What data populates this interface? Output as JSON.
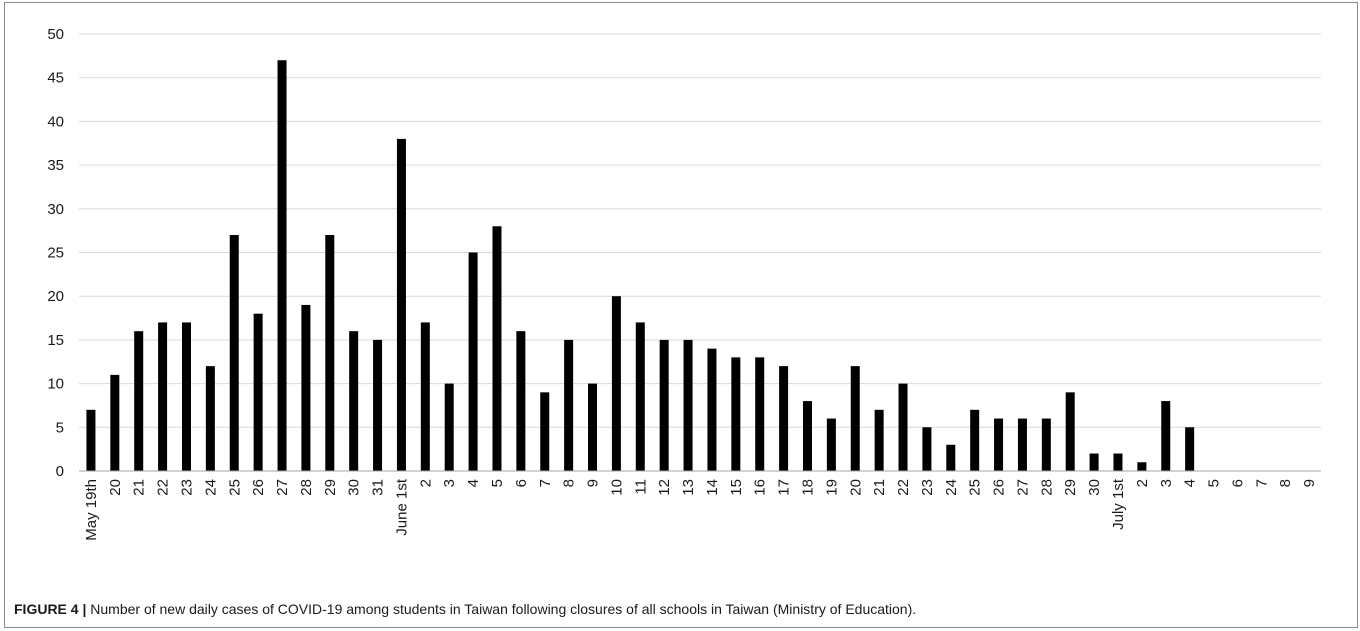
{
  "caption": {
    "label": "FIGURE 4 |",
    "text": "Number of new daily cases of COVID-19 among students in Taiwan following closures of all schools in Taiwan (Ministry of Education)."
  },
  "colors": {
    "bar": "#000000",
    "grid": "#d9d9d9",
    "axis": "#a6a6a6",
    "frame": "#8c8c8c"
  },
  "chart_data": {
    "type": "bar",
    "title": "",
    "xlabel": "",
    "ylabel": "",
    "ylim": [
      0,
      50
    ],
    "yticks": [
      0,
      5,
      10,
      15,
      20,
      25,
      30,
      35,
      40,
      45,
      50
    ],
    "grid": true,
    "legend": "none",
    "categories": [
      "May 19th",
      "20",
      "21",
      "22",
      "23",
      "24",
      "25",
      "26",
      "27",
      "28",
      "29",
      "30",
      "31",
      "June 1st",
      "2",
      "3",
      "4",
      "5",
      "6",
      "7",
      "8",
      "9",
      "10",
      "11",
      "12",
      "13",
      "14",
      "15",
      "16",
      "17",
      "18",
      "19",
      "20",
      "21",
      "22",
      "23",
      "24",
      "25",
      "26",
      "27",
      "28",
      "29",
      "30",
      "July 1st",
      "2",
      "3",
      "4",
      "5",
      "6",
      "7",
      "8",
      "9"
    ],
    "values": [
      7,
      11,
      16,
      17,
      17,
      12,
      27,
      18,
      47,
      19,
      27,
      16,
      15,
      38,
      17,
      10,
      25,
      28,
      16,
      9,
      15,
      10,
      20,
      17,
      15,
      15,
      14,
      13,
      13,
      12,
      8,
      6,
      12,
      7,
      10,
      5,
      3,
      7,
      6,
      6,
      6,
      9,
      2,
      2,
      1,
      8,
      5,
      null,
      null,
      null,
      null,
      null
    ]
  }
}
